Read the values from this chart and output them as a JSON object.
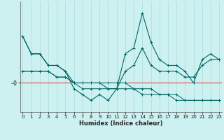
{
  "xlabel": "Humidex (Indice chaleur)",
  "x_values": [
    0,
    1,
    2,
    3,
    4,
    5,
    6,
    7,
    8,
    9,
    10,
    11,
    12,
    13,
    14,
    15,
    16,
    17,
    18,
    19,
    20,
    21,
    22,
    23
  ],
  "line1": [
    8,
    5,
    5,
    3,
    3,
    2,
    -1,
    -2,
    -3,
    -2,
    -3,
    -1,
    5,
    6,
    12,
    7,
    4,
    3,
    3,
    2,
    0,
    4,
    5,
    4
  ],
  "line2": [
    8,
    5,
    5,
    3,
    3,
    2,
    0,
    0,
    0,
    0,
    -1,
    -1,
    2,
    3,
    6,
    3,
    2,
    2,
    2,
    1,
    1,
    3,
    4,
    4
  ],
  "line3": [
    2,
    2,
    2,
    2,
    1,
    1,
    0,
    -1,
    -1,
    -1,
    -1,
    -1,
    -1,
    -1,
    -2,
    -2,
    -2,
    -2,
    -3,
    -3,
    -3,
    -3,
    -3,
    -3
  ],
  "line4": [
    2,
    2,
    2,
    2,
    1,
    1,
    0,
    0,
    0,
    0,
    0,
    0,
    0,
    -1,
    -1,
    -1,
    -2,
    -2,
    -2,
    -3,
    -3,
    -3,
    -3,
    -3
  ],
  "bg_color": "#cdf0f0",
  "line_color": "#006666",
  "zero_line_color": "#dd3333",
  "grid_color": "#aadddd",
  "marker": "+",
  "marker_size": 3,
  "ylim_min": -5,
  "ylim_max": 14,
  "xlim_min": -0.3,
  "xlim_max": 23.3,
  "ylabel_text": "-0",
  "xlabel_fontsize": 6,
  "tick_fontsize": 5,
  "ylabel_fontsize": 6
}
